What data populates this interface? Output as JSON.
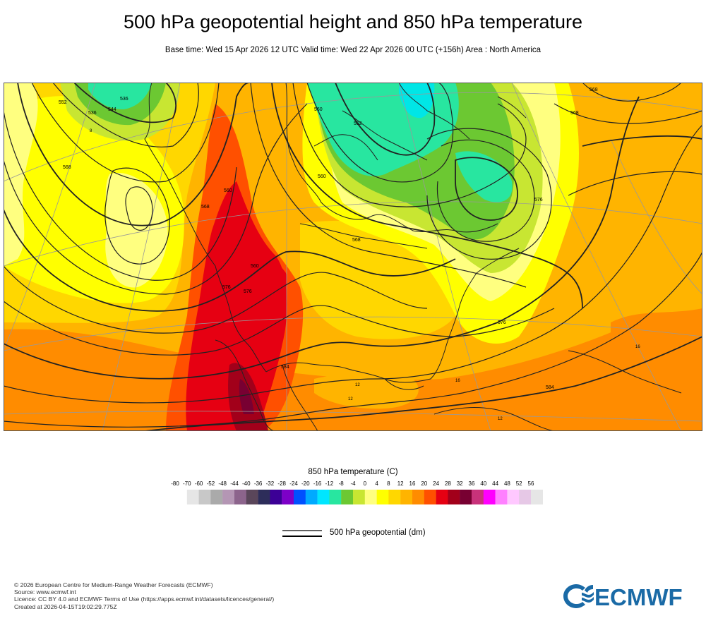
{
  "header": {
    "title": "500 hPa geopotential height and 850 hPa temperature",
    "subtitle": "Base time: Wed 15 Apr 2026 12 UTC Valid time: Wed 22 Apr 2026 00 UTC (+156h) Area : North America"
  },
  "map": {
    "contour_labels": [
      "536",
      "536",
      "544",
      "552",
      "568",
      "568",
      "576",
      "576",
      "560",
      "560",
      "568",
      "560",
      "552",
      "568",
      "576",
      "584",
      "584",
      "560",
      "568",
      "576"
    ],
    "temperature_labels": [
      "12",
      "12",
      "16",
      "16",
      "12",
      "8"
    ],
    "colors": {
      "temp_28": "#a2001a",
      "temp_24": "#e60012",
      "temp_20": "#ff5000",
      "temp_16": "#ff8c00",
      "temp_12": "#ffb400",
      "temp_8": "#ffd700",
      "temp_4": "#ffff00",
      "temp_0": "#ffff80",
      "temp_m4": "#c8e632",
      "temp_m8": "#6cc832",
      "temp_m12": "#28e6a0",
      "temp_m16": "#00e6e6"
    }
  },
  "legend": {
    "title": "850 hPa temperature (C)",
    "ticks": [
      "-80",
      "-70",
      "-60",
      "-52",
      "-48",
      "-44",
      "-40",
      "-36",
      "-32",
      "-28",
      "-24",
      "-20",
      "-16",
      "-12",
      "-8",
      "-4",
      "0",
      "4",
      "8",
      "12",
      "16",
      "20",
      "24",
      "28",
      "32",
      "36",
      "40",
      "44",
      "48",
      "52",
      "56"
    ],
    "colors": [
      "#e6e6e6",
      "#c8c8c8",
      "#aaaaaa",
      "#b496b4",
      "#8c648c",
      "#5a465a",
      "#2d2d5a",
      "#3c0096",
      "#7d00c8",
      "#0050ff",
      "#00aaff",
      "#00e6ff",
      "#28e6a0",
      "#6cc832",
      "#c8e632",
      "#ffff80",
      "#ffff00",
      "#ffd700",
      "#ffb400",
      "#ff8c00",
      "#ff5000",
      "#e60012",
      "#a2001a",
      "#780032",
      "#c8327a",
      "#ff00ff",
      "#ff80ff",
      "#ffc8ff",
      "#e6c8e6",
      "#e6e6e6"
    ],
    "geopotential_label": "500 hPa geopotential (dm)"
  },
  "footer": {
    "copyright": "© 2026 European Centre for Medium-Range Weather Forecasts (ECMWF)",
    "source": "Source: www.ecmwf.int",
    "licence": "Licence: CC BY 4.0 and ECMWF Terms of Use (https://apps.ecmwf.int/datasets/licences/general/)",
    "created": "Created at 2026-04-15T19:02:29.775Z"
  },
  "logo": {
    "text": "ECMWF",
    "color": "#1a6aa6"
  }
}
